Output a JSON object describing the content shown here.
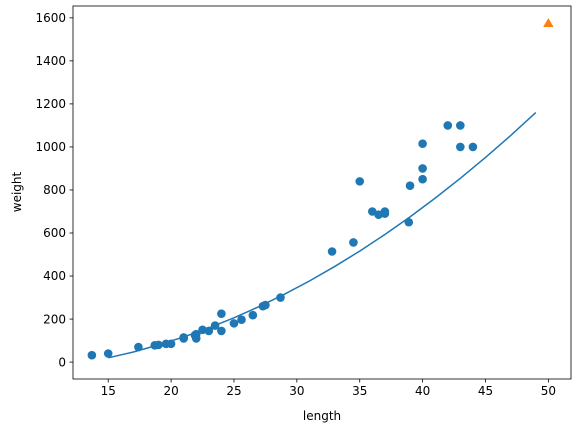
{
  "chart_data": {
    "type": "scatter",
    "title": "",
    "xlabel": "length",
    "ylabel": "weight",
    "xlim": [
      12.2,
      51.8
    ],
    "ylim": [
      -78.5,
      1655.0
    ],
    "x_ticks": [
      15,
      20,
      25,
      30,
      35,
      40,
      45,
      50
    ],
    "y_ticks": [
      0,
      200,
      400,
      600,
      800,
      1000,
      1200,
      1400,
      1600
    ],
    "grid": false,
    "legend": "none",
    "series": [
      {
        "kind": "scatter",
        "color": "#1f77b4",
        "marker": "circle",
        "points": [
          [
            13.7,
            32
          ],
          [
            15.0,
            40
          ],
          [
            17.4,
            70
          ],
          [
            18.7,
            78
          ],
          [
            19.0,
            80
          ],
          [
            19.6,
            85
          ],
          [
            20.0,
            85
          ],
          [
            21.0,
            110
          ],
          [
            21.0,
            115
          ],
          [
            21.9,
            125
          ],
          [
            22.0,
            110
          ],
          [
            22.0,
            130
          ],
          [
            22.5,
            150
          ],
          [
            23.0,
            145
          ],
          [
            23.5,
            170
          ],
          [
            24.0,
            225
          ],
          [
            24.0,
            145
          ],
          [
            25.0,
            180
          ],
          [
            25.6,
            197
          ],
          [
            26.5,
            218
          ],
          [
            27.3,
            260
          ],
          [
            27.5,
            265
          ],
          [
            28.7,
            300
          ],
          [
            32.8,
            514
          ],
          [
            34.5,
            556
          ],
          [
            35.0,
            840
          ],
          [
            36.0,
            700
          ],
          [
            36.5,
            685
          ],
          [
            37.0,
            700
          ],
          [
            37.0,
            690
          ],
          [
            38.9,
            650
          ],
          [
            39.0,
            820
          ],
          [
            40.0,
            850
          ],
          [
            40.0,
            900
          ],
          [
            40.0,
            1015
          ],
          [
            42.0,
            1100
          ],
          [
            43.0,
            1100
          ],
          [
            43.0,
            1000
          ],
          [
            44.0,
            1000
          ]
        ]
      },
      {
        "kind": "line",
        "color": "#1f77b4",
        "points": [
          [
            15,
            20
          ],
          [
            17,
            47
          ],
          [
            19,
            80
          ],
          [
            21,
            117
          ],
          [
            23,
            159
          ],
          [
            25,
            206
          ],
          [
            27,
            258
          ],
          [
            29,
            315
          ],
          [
            31,
            377
          ],
          [
            33,
            444
          ],
          [
            35,
            516
          ],
          [
            37,
            593
          ],
          [
            39,
            675
          ],
          [
            41,
            762
          ],
          [
            43,
            854
          ],
          [
            45,
            951
          ],
          [
            47,
            1053
          ],
          [
            49,
            1160
          ]
        ]
      },
      {
        "kind": "scatter",
        "color": "#ff7f0e",
        "marker": "triangle",
        "points": [
          [
            50,
            1573
          ]
        ]
      }
    ]
  }
}
